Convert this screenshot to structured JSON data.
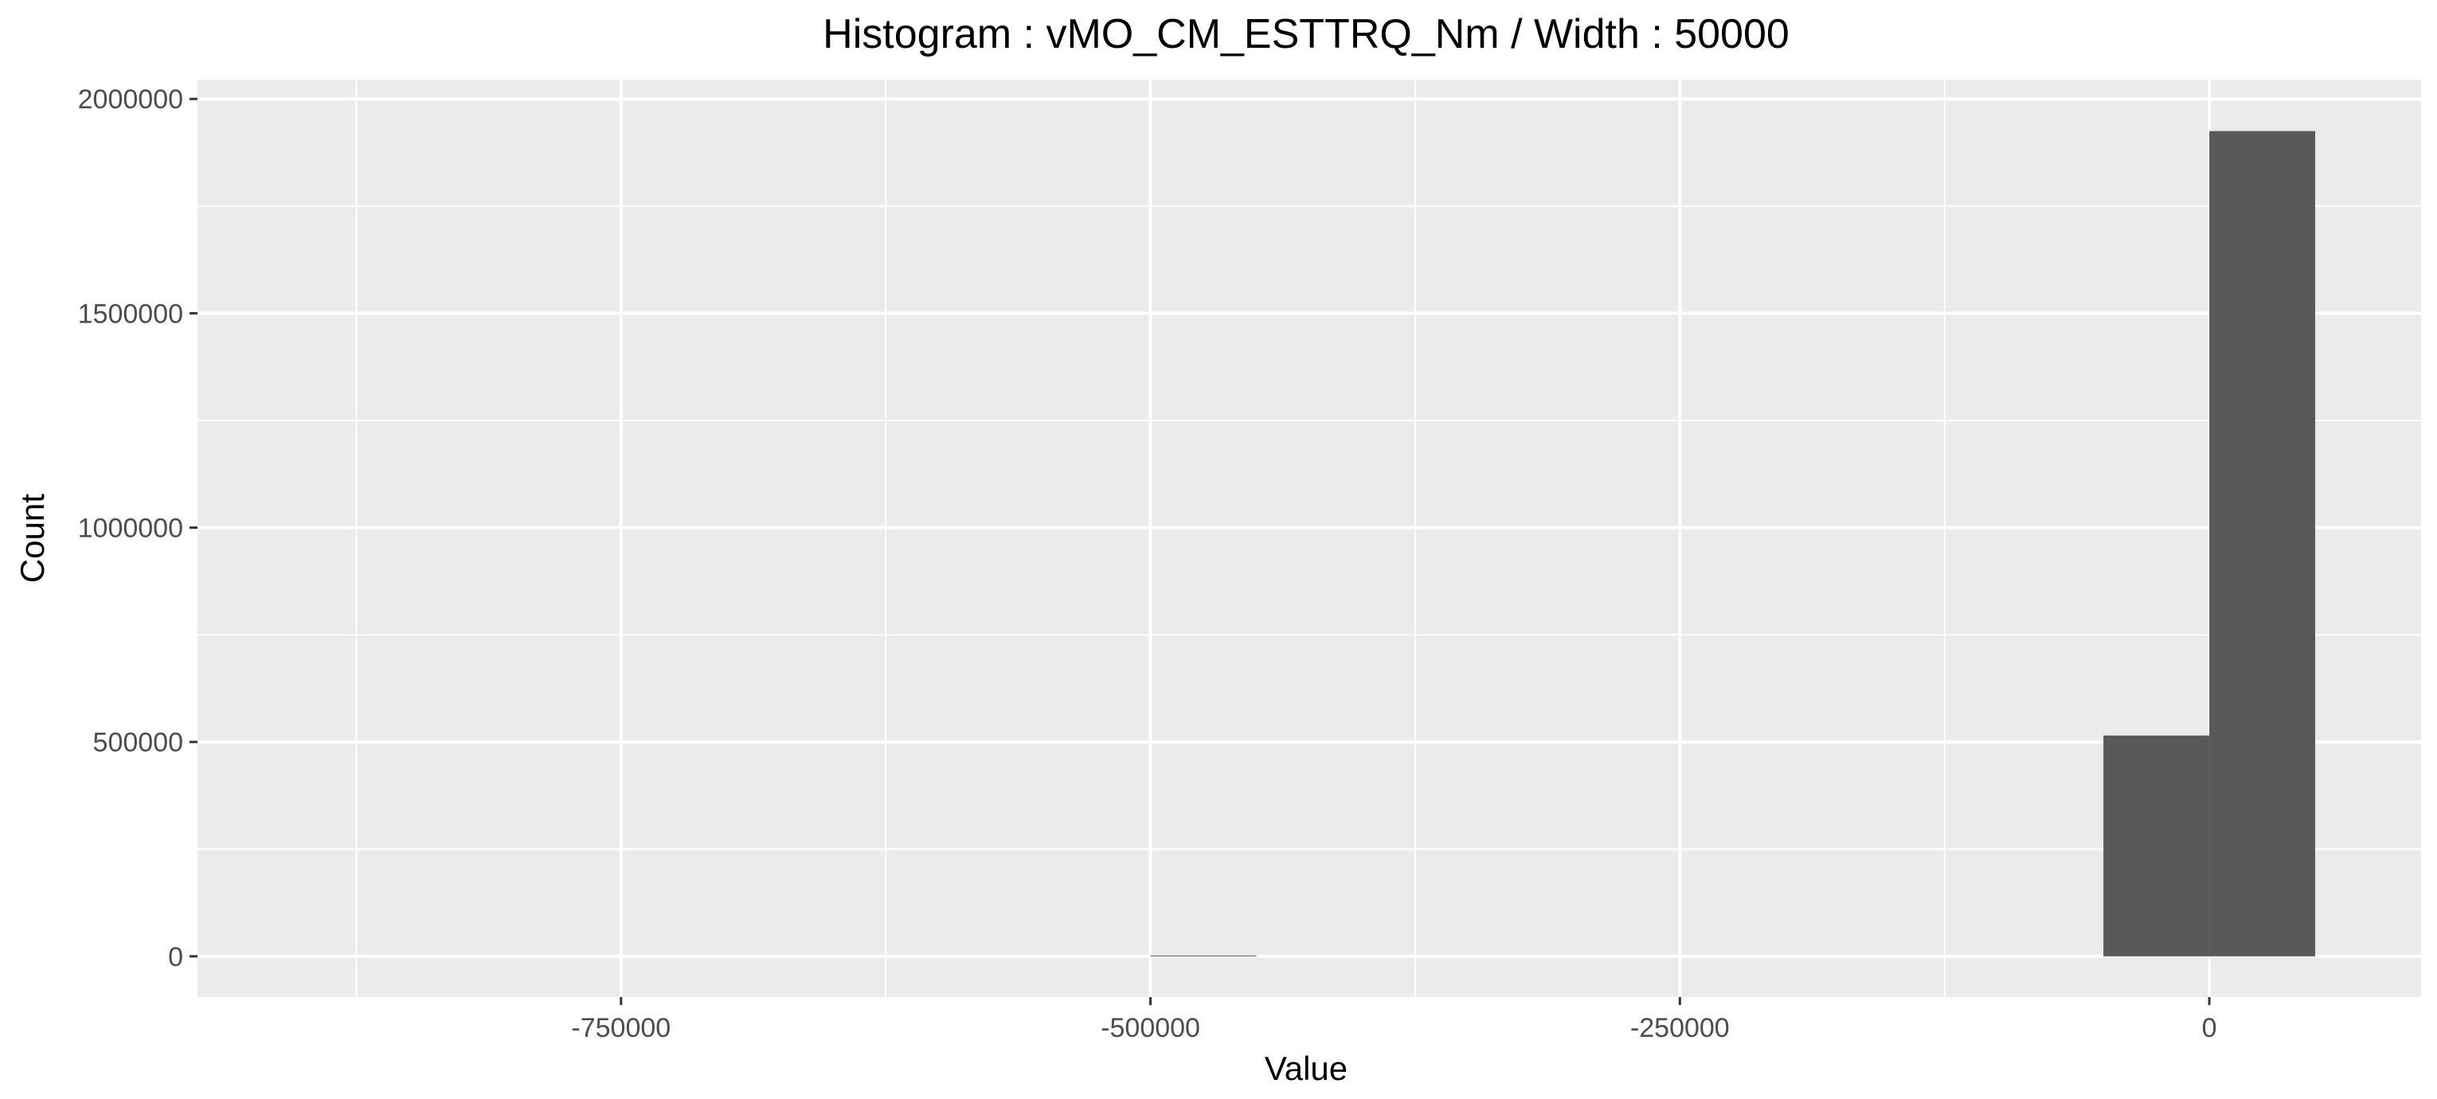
{
  "chart_data": {
    "type": "bar",
    "title": "Histogram : vMO_CM_ESTTRQ_Nm / Width : 50000",
    "xlabel": "Value",
    "ylabel": "Count",
    "bin_width": 50000,
    "xlim": [
      -950000,
      100000
    ],
    "ylim": [
      -95000,
      2045000
    ],
    "x_ticks": [
      -750000,
      -500000,
      -250000,
      0
    ],
    "x_tick_labels": [
      "-750000",
      "-500000",
      "-250000",
      "0"
    ],
    "y_ticks": [
      0,
      500000,
      1000000,
      1500000,
      2000000
    ],
    "y_tick_labels": [
      "0",
      "500000",
      "1000000",
      "1500000",
      "2000000"
    ],
    "bins": [
      {
        "x_start": -500000,
        "x_end": -450000,
        "count": 2000
      },
      {
        "x_start": -50000,
        "x_end": 0,
        "count": 515000
      },
      {
        "x_start": 0,
        "x_end": 50000,
        "count": 1925000
      }
    ],
    "grid": true,
    "legend": "none",
    "colors": {
      "panel": "#ebebeb",
      "grid": "#ffffff",
      "bar": "#595959"
    }
  }
}
